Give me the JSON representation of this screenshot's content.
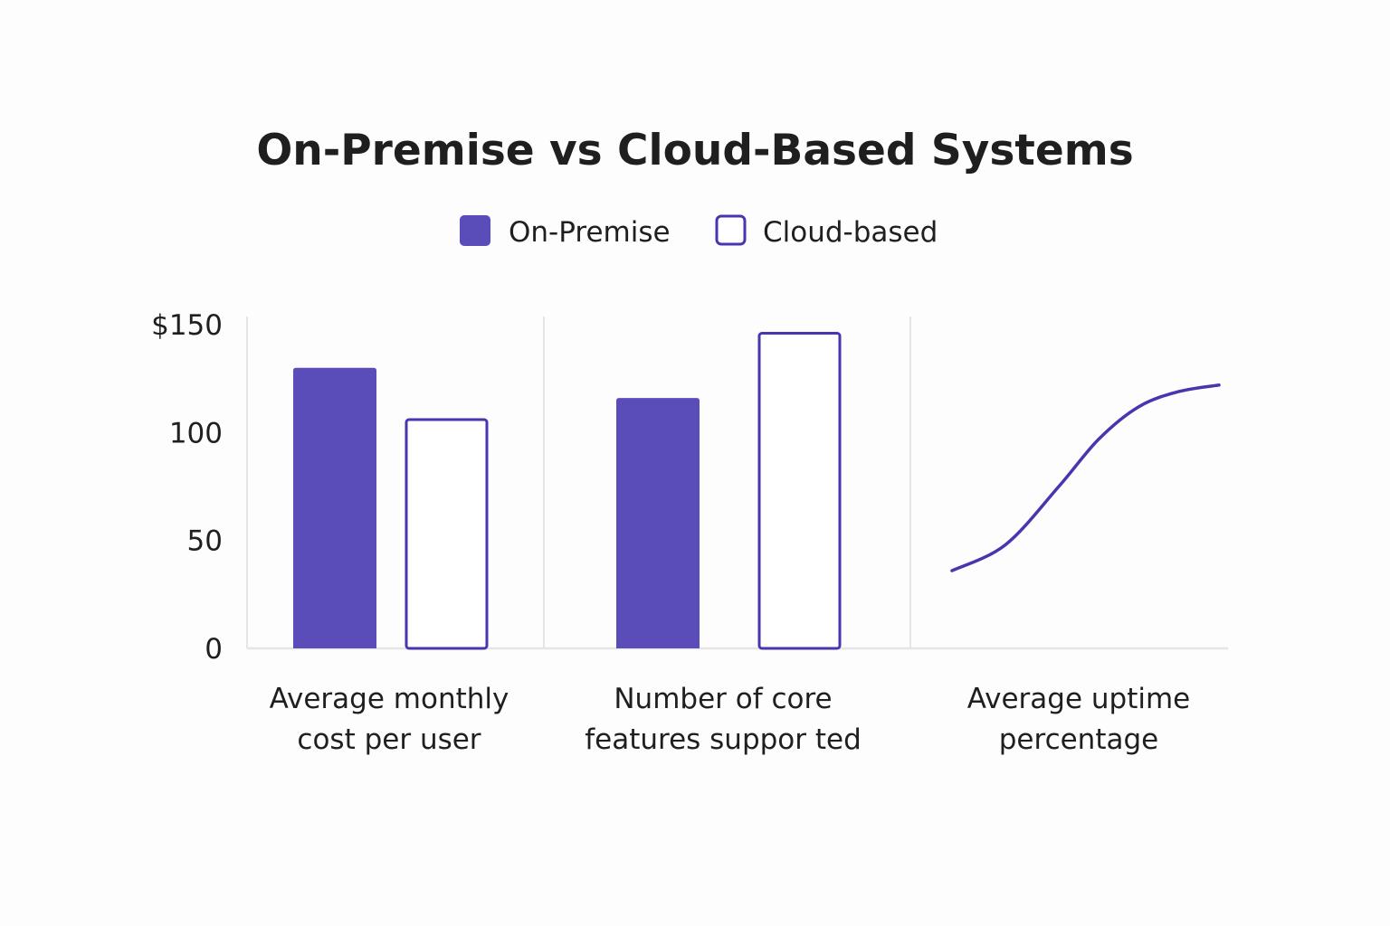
{
  "chart_data": {
    "type": "bar",
    "title": "On-Premise vs Cloud-Based Systems",
    "legend": [
      {
        "name": "On-Premise",
        "style": "filled"
      },
      {
        "name": "Cloud-based",
        "style": "outline"
      }
    ],
    "y_ticks": [
      "0",
      "50",
      "100",
      "$150"
    ],
    "ylim": [
      0,
      150
    ],
    "categories": [
      [
        "Average monthly",
        "cost per user"
      ],
      [
        "Number of core",
        "features suppor ted"
      ],
      [
        "Average uptime",
        "percentage"
      ]
    ],
    "series": [
      {
        "name": "On-Premise",
        "values": [
          130,
          116,
          null
        ]
      },
      {
        "name": "Cloud-based",
        "values": [
          106,
          146,
          null
        ]
      }
    ],
    "uptime_curve": {
      "series": "Cloud-based",
      "x": [
        0,
        0.2,
        0.4,
        0.55,
        0.7,
        0.85,
        1.0
      ],
      "y": [
        36,
        48,
        75,
        97,
        112,
        119,
        122
      ]
    },
    "colors": {
      "primary": "#5a4cb9",
      "outline": "#4636b0",
      "axis": "#e5e5e5",
      "text": "#1f1f1f"
    }
  }
}
